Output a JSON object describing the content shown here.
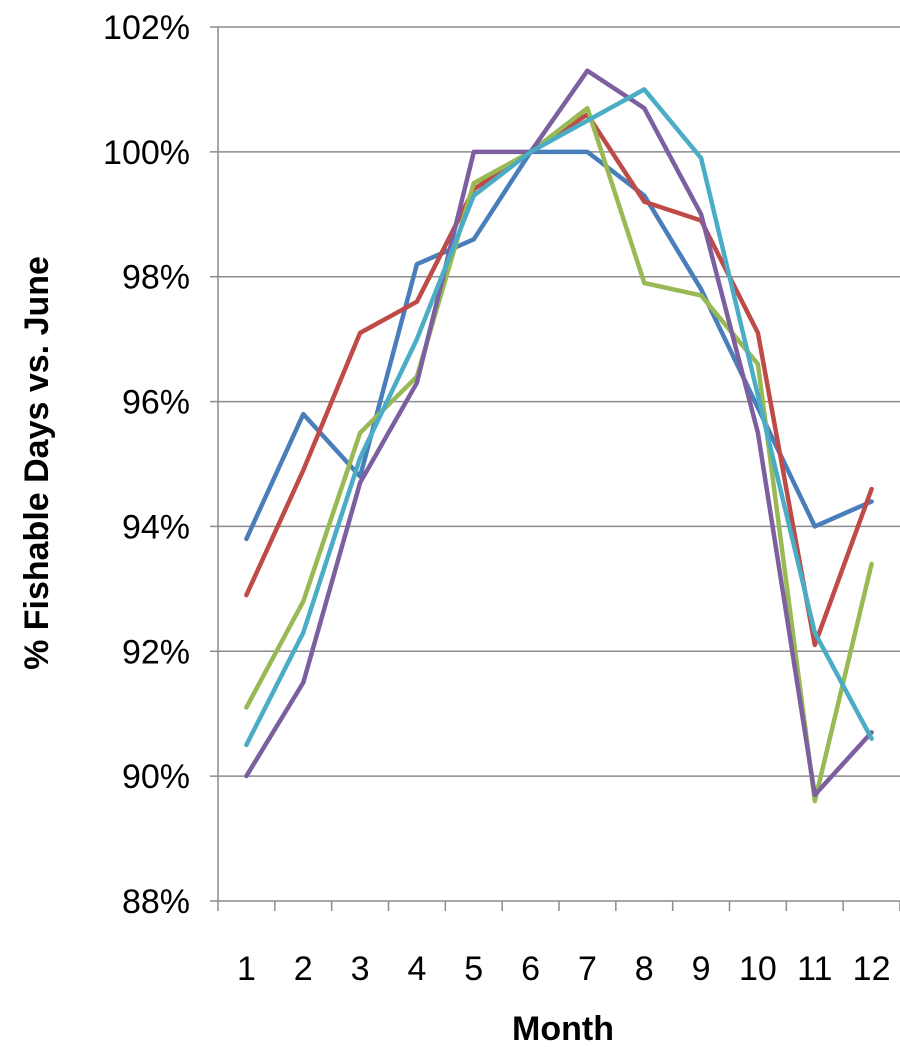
{
  "chart_data": {
    "type": "line",
    "title": "",
    "xlabel": "Month",
    "ylabel": "% Fishable Days vs. June",
    "x": [
      "1",
      "2",
      "3",
      "4",
      "5",
      "6",
      "7",
      "8",
      "9",
      "10",
      "11",
      "12"
    ],
    "ylim": [
      88,
      102
    ],
    "ytick_step": 2,
    "ytick_suffix": "%",
    "grid": "horizontal",
    "legend": "none",
    "series": [
      {
        "color": "#4a7ebb",
        "values": [
          93.8,
          95.8,
          94.8,
          98.2,
          98.6,
          100.0,
          100.0,
          99.3,
          97.8,
          95.9,
          94.0,
          94.4
        ]
      },
      {
        "color": "#be4b48",
        "values": [
          92.9,
          94.9,
          97.1,
          97.6,
          99.4,
          100.0,
          100.6,
          99.2,
          98.9,
          97.1,
          92.1,
          94.6
        ]
      },
      {
        "color": "#98b954",
        "values": [
          91.1,
          92.8,
          95.5,
          96.4,
          99.5,
          100.0,
          100.7,
          97.9,
          97.7,
          96.6,
          89.6,
          93.4
        ]
      },
      {
        "color": "#7d5fa0",
        "values": [
          90.0,
          91.5,
          94.7,
          96.3,
          100.0,
          100.0,
          101.3,
          100.7,
          99.0,
          95.5,
          89.7,
          90.7
        ]
      },
      {
        "color": "#4bacc6",
        "values": [
          90.5,
          92.3,
          95.1,
          97.0,
          99.3,
          100.0,
          100.5,
          101.0,
          99.9,
          96.1,
          92.3,
          90.6
        ]
      }
    ]
  }
}
